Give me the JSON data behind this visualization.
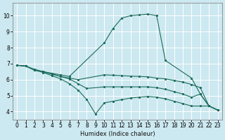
{
  "xlabel": "Humidex (Indice chaleur)",
  "background_color": "#cce8f0",
  "grid_color": "#ffffff",
  "line_color": "#1a6b5a",
  "xlim": [
    -0.5,
    23.5
  ],
  "ylim": [
    3.5,
    10.8
  ],
  "xticks": [
    0,
    1,
    2,
    3,
    4,
    5,
    6,
    7,
    8,
    9,
    10,
    11,
    12,
    13,
    14,
    15,
    16,
    17,
    18,
    19,
    20,
    21,
    22,
    23
  ],
  "yticks": [
    4,
    5,
    6,
    7,
    8,
    9,
    10
  ],
  "lines": [
    {
      "x": [
        0,
        1,
        2,
        3,
        4,
        5,
        6,
        10,
        11,
        12,
        13,
        14,
        15,
        16,
        17,
        20,
        21,
        22,
        23
      ],
      "y": [
        6.9,
        6.85,
        6.6,
        6.5,
        6.4,
        6.3,
        6.2,
        8.3,
        9.2,
        9.85,
        10.0,
        10.05,
        10.1,
        10.0,
        7.2,
        6.1,
        5.1,
        4.35,
        4.1
      ]
    },
    {
      "x": [
        0,
        1,
        2,
        3,
        4,
        5,
        6,
        7,
        10,
        11,
        12,
        13,
        14,
        15,
        16,
        17,
        18,
        19,
        20,
        21,
        22,
        23
      ],
      "y": [
        6.9,
        6.85,
        6.6,
        6.5,
        6.35,
        6.2,
        6.1,
        6.0,
        6.3,
        6.28,
        6.25,
        6.22,
        6.2,
        6.18,
        6.1,
        6.05,
        5.95,
        5.85,
        5.7,
        5.5,
        4.35,
        4.1
      ]
    },
    {
      "x": [
        0,
        1,
        2,
        3,
        4,
        5,
        6,
        7,
        8,
        10,
        11,
        12,
        13,
        14,
        15,
        16,
        17,
        18,
        19,
        20,
        21,
        22,
        23
      ],
      "y": [
        6.9,
        6.85,
        6.65,
        6.5,
        6.35,
        6.2,
        6.05,
        5.75,
        5.45,
        5.55,
        5.55,
        5.55,
        5.55,
        5.55,
        5.55,
        5.5,
        5.4,
        5.25,
        5.1,
        4.9,
        5.1,
        4.35,
        4.1
      ]
    },
    {
      "x": [
        0,
        1,
        2,
        3,
        4,
        5,
        6,
        7,
        8,
        9,
        10,
        11,
        12,
        13,
        14,
        15,
        16,
        17,
        18,
        19,
        20,
        21,
        22,
        23
      ],
      "y": [
        6.9,
        6.85,
        6.6,
        6.45,
        6.25,
        6.05,
        5.75,
        5.35,
        4.75,
        3.85,
        4.55,
        4.65,
        4.75,
        4.85,
        4.9,
        4.95,
        4.9,
        4.8,
        4.65,
        4.5,
        4.35,
        4.35,
        4.35,
        4.1
      ]
    }
  ]
}
